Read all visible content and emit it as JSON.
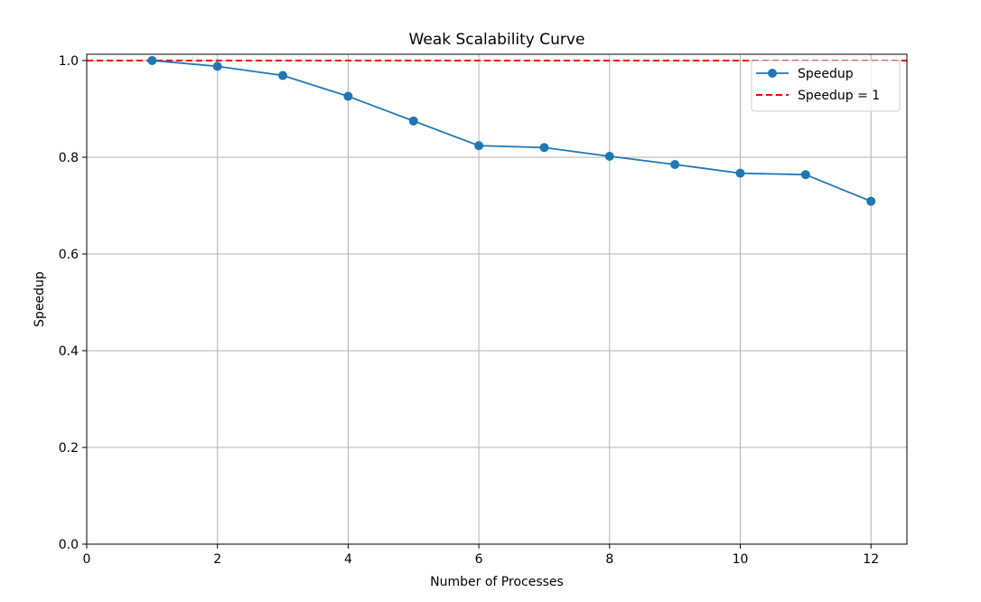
{
  "chart_data": {
    "type": "line",
    "title": "Weak Scalability Curve",
    "xlabel": "Number of Processes",
    "ylabel": "Speedup",
    "xlim": [
      0,
      12.55
    ],
    "ylim": [
      0,
      1.013
    ],
    "xticks": [
      0,
      2,
      4,
      6,
      8,
      10,
      12
    ],
    "yticks": [
      0.0,
      0.2,
      0.4,
      0.6,
      0.8,
      1.0
    ],
    "xtick_labels": [
      "0",
      "2",
      "4",
      "6",
      "8",
      "10",
      "12"
    ],
    "ytick_labels": [
      "0.0",
      "0.2",
      "0.4",
      "0.6",
      "0.8",
      "1.0"
    ],
    "grid": true,
    "legend_position": "top-right",
    "series": [
      {
        "name": "Speedup",
        "color": "#1f77b4",
        "marker": "circle",
        "x": [
          1,
          2,
          3,
          4,
          5,
          6,
          7,
          8,
          9,
          10,
          11,
          12
        ],
        "y": [
          1.0,
          0.988,
          0.969,
          0.926,
          0.875,
          0.824,
          0.82,
          0.802,
          0.785,
          0.767,
          0.764,
          0.709
        ]
      }
    ],
    "reference_lines": [
      {
        "name": "Speedup = 1",
        "y": 1.0,
        "color": "#ff0000",
        "style": "dashed"
      }
    ]
  }
}
